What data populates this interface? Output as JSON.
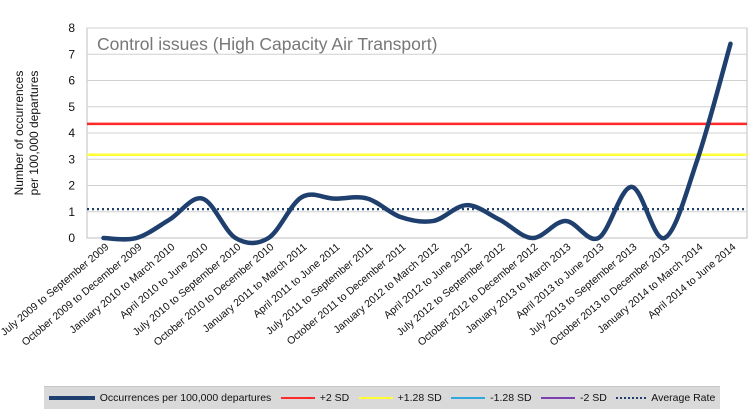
{
  "chart_data": {
    "type": "line",
    "title": "Control issues (High Capacity Air Transport)",
    "ylabel": "Number of occurrences per 100,000 departures",
    "xlabel": "",
    "ylim": [
      0,
      8
    ],
    "yticks": [
      0,
      1,
      2,
      3,
      4,
      5,
      6,
      7,
      8
    ],
    "grid": true,
    "legend_position": "bottom",
    "categories": [
      "July 2009 to September 2009",
      "October 2009 to December 2009",
      "January 2010 to March 2010",
      "April 2010 to June 2010",
      "July 2010 to September 2010",
      "October 2010 to December 2010",
      "January 2011 to March 2011",
      "April 2011 to June 2011",
      "July 2011 to September 2011",
      "October 2011 to December 2011",
      "January 2012 to March 2012",
      "April 2012 to June 2012",
      "July 2012 to September 2012",
      "October 2012 to December 2012",
      "January 2013 to March 2013",
      "April 2013 to June 2013",
      "July 2013 to September 2013",
      "October 2013 to December 2013",
      "January 2014 to March 2014",
      "April 2014 to June 2014"
    ],
    "series": [
      {
        "name": "Occurrences per 100,000 departures",
        "color": "#1f3f6e",
        "style": "solid",
        "values": [
          0,
          0,
          0.7,
          1.5,
          0,
          0,
          1.55,
          1.5,
          1.5,
          0.8,
          0.65,
          1.25,
          0.7,
          0,
          0.65,
          0,
          1.95,
          0,
          3.0,
          7.4
        ]
      },
      {
        "name": "+2 SD",
        "color": "#ff2a2a",
        "style": "solid",
        "constant": 4.35
      },
      {
        "name": "+1.28 SD",
        "color": "#ffff33",
        "style": "solid",
        "constant": 3.17
      },
      {
        "name": "-1.28 SD",
        "color": "#33a8e0",
        "style": "solid",
        "constant": null
      },
      {
        "name": "-2 SD",
        "color": "#7a3fb0",
        "style": "solid",
        "constant": null
      },
      {
        "name": "Average Rate",
        "color": "#1f3f6e",
        "style": "dotted",
        "constant": 1.1
      }
    ]
  }
}
